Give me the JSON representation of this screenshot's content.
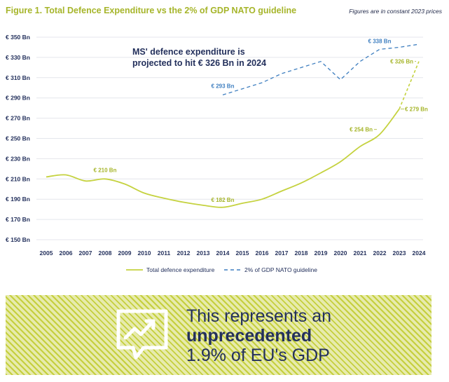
{
  "header": {
    "title": "Figure 1. Total Defence Expenditure vs the 2% of GDP NATO guideline",
    "note": "Figures are in constant 2023 prices"
  },
  "chart_data": {
    "type": "line",
    "x": [
      2005,
      2006,
      2007,
      2008,
      2009,
      2010,
      2011,
      2012,
      2013,
      2014,
      2015,
      2016,
      2017,
      2018,
      2019,
      2020,
      2021,
      2022,
      2023,
      2024
    ],
    "series": [
      {
        "name": "Total defence expenditure",
        "style": "solid",
        "color": "#c5d23f",
        "values": [
          212,
          214,
          208,
          210,
          205,
          196,
          191,
          187,
          184,
          182,
          186,
          190,
          198,
          206,
          216,
          227,
          242,
          254,
          279,
          326
        ]
      },
      {
        "name": "2% of GDP NATO guideline",
        "style": "dashed",
        "color": "#3f7fc0",
        "x": [
          2014,
          2015,
          2016,
          2017,
          2018,
          2019,
          2020,
          2021,
          2022,
          2023,
          2024
        ],
        "values": [
          293,
          299,
          305,
          314,
          320,
          326,
          308,
          326,
          338,
          340,
          343
        ]
      }
    ],
    "projection": {
      "from": 2023,
      "to": 2024,
      "style": "dashed"
    },
    "ylim": [
      150,
      350
    ],
    "yticks": [
      150,
      170,
      190,
      210,
      230,
      250,
      270,
      290,
      310,
      330,
      350
    ],
    "ytick_labels": [
      "€ 150 Bn",
      "€ 170 Bn",
      "€ 190 Bn",
      "€ 210 Bn",
      "€ 230 Bn",
      "€ 250 Bn",
      "€ 270 Bn",
      "€ 290 Bn",
      "€ 310 Bn",
      "€ 330 Bn",
      "€ 350 Bn"
    ],
    "grid": true,
    "legend_position": "bottom",
    "data_labels": [
      {
        "series": 0,
        "x": 2008,
        "value": 210,
        "text": "€ 210 Bn",
        "color": "#a6b52a"
      },
      {
        "series": 0,
        "x": 2014,
        "value": 182,
        "text": "€ 182 Bn",
        "color": "#a6b52a"
      },
      {
        "series": 0,
        "x": 2022,
        "value": 254,
        "text": "€ 254 Bn",
        "color": "#a6b52a"
      },
      {
        "series": 0,
        "x": 2023,
        "value": 279,
        "text": "€ 279 Bn",
        "color": "#a6b52a"
      },
      {
        "series": 0,
        "x": 2024,
        "value": 326,
        "text": "€ 326 Bn",
        "color": "#a6b52a"
      },
      {
        "series": 1,
        "x": 2014,
        "value": 293,
        "text": "€ 293 Bn",
        "color": "#3f7fc0"
      },
      {
        "series": 1,
        "x": 2022,
        "value": 338,
        "text": "€ 338 Bn",
        "color": "#3f7fc0"
      }
    ],
    "annotation": {
      "lines": [
        "MS' defence expenditure is",
        "projected to hit € 326 Bn in 2024"
      ],
      "color": "#23305c"
    }
  },
  "banner": {
    "line1": "This represents an",
    "line2": "unprecedented",
    "line3": "1.9% of EU's GDP",
    "icon": "chart-growth-icon"
  }
}
